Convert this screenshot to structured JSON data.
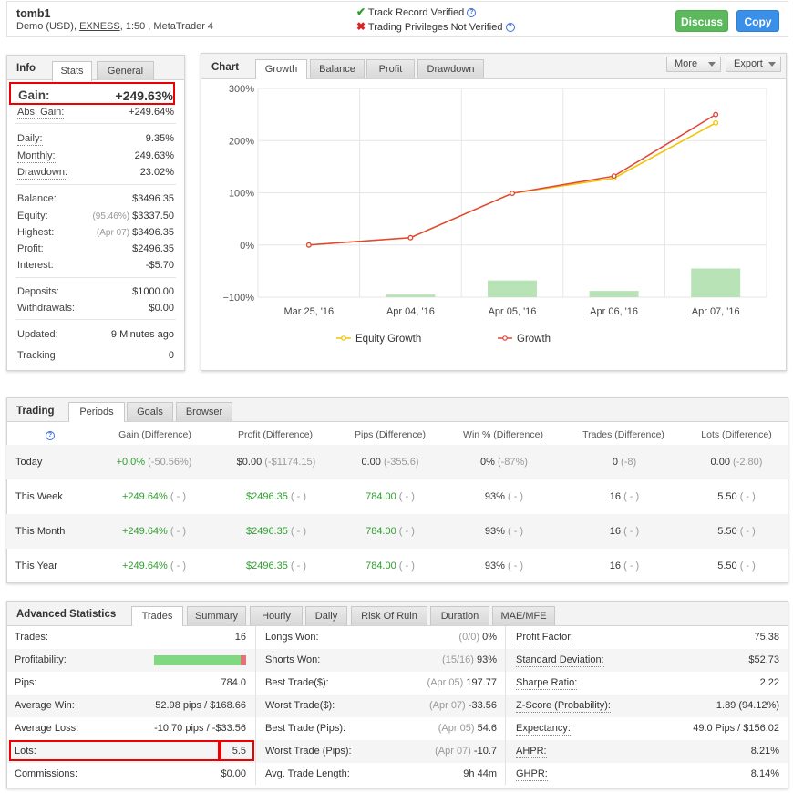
{
  "account": {
    "name": "tomb1",
    "type": "Demo (USD),",
    "broker": "EXNESS",
    "leverage_platform": ", 1:50 , MetaTrader 4"
  },
  "verification": {
    "track_record": "Track Record Verified",
    "trading_privileges": "Trading Privileges Not Verified",
    "help": "?"
  },
  "actions": {
    "discuss": "Discuss",
    "copy": "Copy"
  },
  "info": {
    "tabs": [
      "Info",
      "Stats",
      "General"
    ],
    "gain_label": "Gain:",
    "gain_value": "+249.63%",
    "abs_gain_label": "Abs. Gain:",
    "abs_gain_value": "+249.64%",
    "daily_label": "Daily:",
    "daily_value": "9.35%",
    "monthly_label": "Monthly:",
    "monthly_value": "249.63%",
    "drawdown_label": "Drawdown:",
    "drawdown_value": "23.02%",
    "balance_label": "Balance:",
    "balance_value": "$3496.35",
    "equity_label": "Equity:",
    "equity_pct": "(95.46%)",
    "equity_value": "$3337.50",
    "highest_label": "Highest:",
    "highest_date": "(Apr 07)",
    "highest_value": "$3496.35",
    "profit_label": "Profit:",
    "profit_value": "$2496.35",
    "interest_label": "Interest:",
    "interest_value": "-$5.70",
    "deposits_label": "Deposits:",
    "deposits_value": "$1000.00",
    "withdrawals_label": "Withdrawals:",
    "withdrawals_value": "$0.00",
    "updated_label": "Updated:",
    "updated_value": "9 Minutes ago",
    "tracking_label": "Tracking",
    "tracking_value": "0"
  },
  "chart_panel": {
    "title": "Chart",
    "tabs": [
      "Growth",
      "Balance",
      "Profit",
      "Drawdown"
    ],
    "more": "More",
    "export": "Export"
  },
  "chart_data": {
    "type": "line",
    "categories": [
      "Mar 25, '16",
      "Apr 04, '16",
      "Apr 05, '16",
      "Apr 06, '16",
      "Apr 07, '16"
    ],
    "x": [
      0.5,
      1.5,
      2.5,
      3.5,
      4.5
    ],
    "series": [
      {
        "name": "Equity Growth",
        "color": "#f2c200",
        "x": [
          0.5,
          1.5,
          2.5,
          3.5,
          4.5
        ],
        "values": [
          0,
          14,
          99,
          128,
          234
        ]
      },
      {
        "name": "Growth",
        "color": "#e0473a",
        "x": [
          0.5,
          1.5,
          2.5,
          3.5,
          4.5
        ],
        "values": [
          0,
          14,
          99,
          132,
          250
        ]
      }
    ],
    "bars": {
      "color": "#b7e3b7",
      "x": [
        1.5,
        2.5,
        3.5,
        4.5
      ],
      "values": [
        -95,
        -68,
        -88,
        -45
      ]
    },
    "yticks": [
      "300%",
      "200%",
      "100%",
      "0%",
      "−100%"
    ],
    "ylim": [
      -100,
      300
    ],
    "xlim": [
      0,
      5
    ],
    "grid": true,
    "legend": "bottom"
  },
  "trading": {
    "title": "Trading",
    "tabs": [
      "Periods",
      "Goals",
      "Browser"
    ],
    "help": "?",
    "headers": [
      "Gain (Difference)",
      "Profit (Difference)",
      "Pips (Difference)",
      "Win % (Difference)",
      "Trades (Difference)",
      "Lots (Difference)"
    ],
    "rows": [
      {
        "period": "Today",
        "gain": "+0.0%",
        "gain_diff": "(-50.56%)",
        "profit": "$0.00",
        "profit_diff": "(-$1174.15)",
        "pips": "0.00",
        "pips_diff": "(-355.6)",
        "win": "0%",
        "win_diff": "(-87%)",
        "trades": "0",
        "trades_diff": "(-8)",
        "lots": "0.00",
        "lots_diff": "(-2.80)"
      },
      {
        "period": "This Week",
        "gain": "+249.64%",
        "gain_diff": "( - )",
        "profit": "$2496.35",
        "profit_diff": "( - )",
        "pips": "784.00",
        "pips_diff": "( - )",
        "win": "93%",
        "win_diff": "( - )",
        "trades": "16",
        "trades_diff": "( - )",
        "lots": "5.50",
        "lots_diff": "( - )"
      },
      {
        "period": "This Month",
        "gain": "+249.64%",
        "gain_diff": "( - )",
        "profit": "$2496.35",
        "profit_diff": "( - )",
        "pips": "784.00",
        "pips_diff": "( - )",
        "win": "93%",
        "win_diff": "( - )",
        "trades": "16",
        "trades_diff": "( - )",
        "lots": "5.50",
        "lots_diff": "( - )"
      },
      {
        "period": "This Year",
        "gain": "+249.64%",
        "gain_diff": "( - )",
        "profit": "$2496.35",
        "profit_diff": "( - )",
        "pips": "784.00",
        "pips_diff": "( - )",
        "win": "93%",
        "win_diff": "( - )",
        "trades": "16",
        "trades_diff": "( - )",
        "lots": "5.50",
        "lots_diff": "( - )"
      }
    ]
  },
  "advanced": {
    "title": "Advanced Statistics",
    "tabs": [
      "Trades",
      "Summary",
      "Hourly",
      "Daily",
      "Risk Of Ruin",
      "Duration",
      "MAE/MFE"
    ],
    "profitability": 0.94,
    "col1": [
      {
        "label": "Trades:",
        "value": "16"
      },
      {
        "label": "Profitability:",
        "value": ""
      },
      {
        "label": "Pips:",
        "value": "784.0"
      },
      {
        "label": "Average Win:",
        "value": "52.98 pips / $168.66"
      },
      {
        "label": "Average Loss:",
        "value": "-10.70 pips / -$33.56"
      },
      {
        "label": "Lots:",
        "value": "5.5"
      },
      {
        "label": "Commissions:",
        "value": "$0.00"
      }
    ],
    "col2": [
      {
        "label": "Longs Won:",
        "pre": "(0/0)",
        "value": "0%"
      },
      {
        "label": "Shorts Won:",
        "pre": "(15/16)",
        "value": "93%"
      },
      {
        "label": "Best Trade($):",
        "pre": "(Apr 05)",
        "value": "197.77"
      },
      {
        "label": "Worst Trade($):",
        "pre": "(Apr 07)",
        "value": "-33.56"
      },
      {
        "label": "Best Trade (Pips):",
        "pre": "(Apr 05)",
        "value": "54.6"
      },
      {
        "label": "Worst Trade (Pips):",
        "pre": "(Apr 07)",
        "value": "-10.7"
      },
      {
        "label": "Avg. Trade Length:",
        "pre": "",
        "value": "9h 44m"
      }
    ],
    "col3": [
      {
        "label": "Profit Factor:",
        "value": "75.38"
      },
      {
        "label": "Standard Deviation:",
        "value": "$52.73"
      },
      {
        "label": "Sharpe Ratio:",
        "value": "2.22"
      },
      {
        "label": "Z-Score (Probability):",
        "value": "1.89 (94.12%)"
      },
      {
        "label": "Expectancy:",
        "value": "49.0 Pips / $156.02"
      },
      {
        "label": "AHPR:",
        "value": "8.21%"
      },
      {
        "label": "GHPR:",
        "value": "8.14%"
      }
    ]
  }
}
